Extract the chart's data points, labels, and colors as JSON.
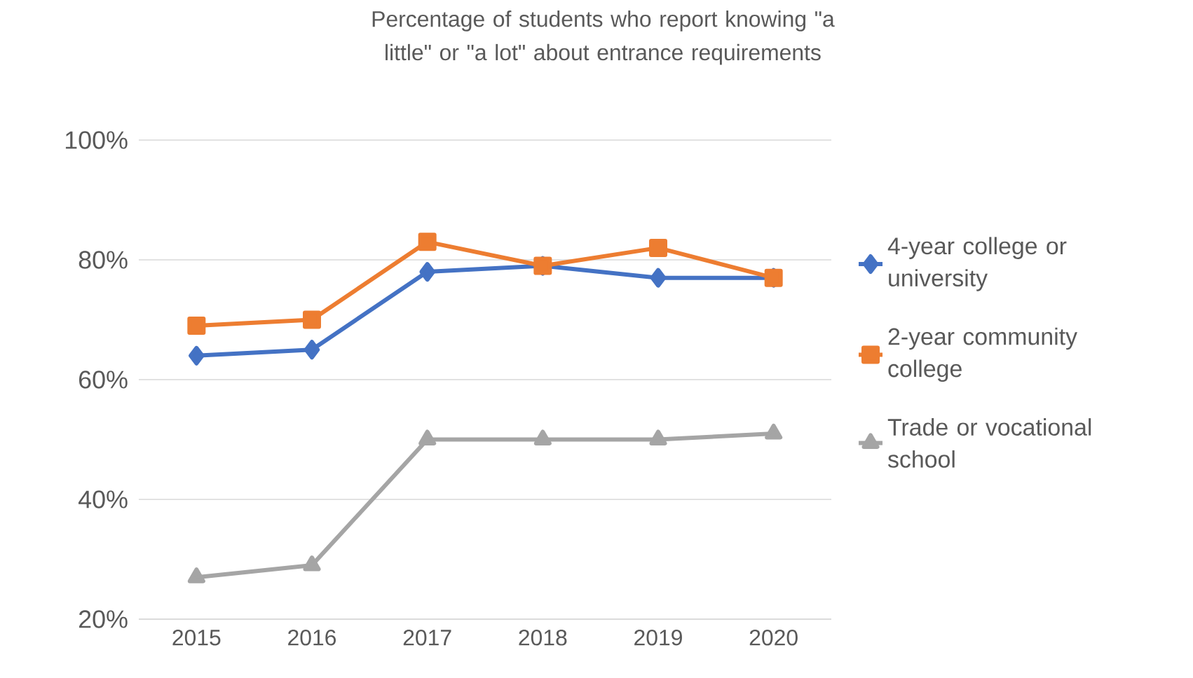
{
  "chart_data": {
    "type": "line",
    "title": "Percentage of students who report knowing \"a little\" or \"a lot\" about entrance requirements",
    "categories": [
      "2015",
      "2016",
      "2017",
      "2018",
      "2019",
      "2020"
    ],
    "series": [
      {
        "name": "4-year college or university",
        "color": "#4472c4",
        "marker": "diamond",
        "values": [
          64,
          65,
          78,
          79,
          77,
          77
        ]
      },
      {
        "name": "2-year community college",
        "color": "#ed7d31",
        "marker": "square",
        "values": [
          69,
          70,
          83,
          79,
          82,
          77
        ]
      },
      {
        "name": "Trade or vocational school",
        "color": "#a5a5a5",
        "marker": "triangle",
        "values": [
          27,
          29,
          50,
          50,
          50,
          51
        ]
      }
    ],
    "ylim": [
      20,
      100
    ],
    "yticks": [
      {
        "value": 20,
        "label": "20%"
      },
      {
        "value": 40,
        "label": "40%"
      },
      {
        "value": 60,
        "label": "60%"
      },
      {
        "value": 80,
        "label": "80%"
      },
      {
        "value": 100,
        "label": "100%"
      }
    ],
    "grid": "y",
    "legend": "right",
    "line_style": "solid"
  }
}
